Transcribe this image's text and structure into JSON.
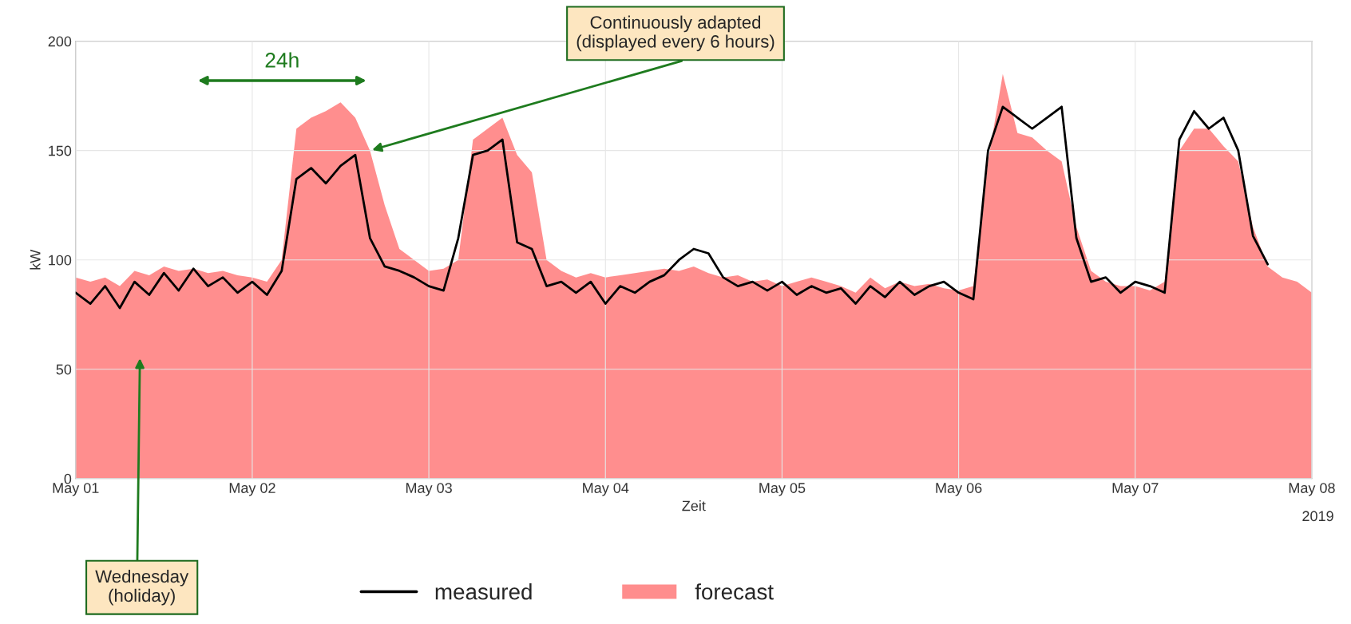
{
  "chart_data": {
    "type": "line",
    "xlabel": "Zeit",
    "ylabel": "kW",
    "x": [
      "2019-05-01T00:00",
      "2019-05-01T02:00",
      "2019-05-01T04:00",
      "2019-05-01T06:00",
      "2019-05-01T08:00",
      "2019-05-01T10:00",
      "2019-05-01T12:00",
      "2019-05-01T14:00",
      "2019-05-01T16:00",
      "2019-05-01T18:00",
      "2019-05-01T20:00",
      "2019-05-01T22:00",
      "2019-05-02T00:00",
      "2019-05-02T02:00",
      "2019-05-02T04:00",
      "2019-05-02T06:00",
      "2019-05-02T08:00",
      "2019-05-02T10:00",
      "2019-05-02T12:00",
      "2019-05-02T14:00",
      "2019-05-02T16:00",
      "2019-05-02T18:00",
      "2019-05-02T20:00",
      "2019-05-02T22:00",
      "2019-05-03T00:00",
      "2019-05-03T02:00",
      "2019-05-03T04:00",
      "2019-05-03T06:00",
      "2019-05-03T08:00",
      "2019-05-03T10:00",
      "2019-05-03T12:00",
      "2019-05-03T14:00",
      "2019-05-03T16:00",
      "2019-05-03T18:00",
      "2019-05-03T20:00",
      "2019-05-03T22:00",
      "2019-05-04T00:00",
      "2019-05-04T02:00",
      "2019-05-04T04:00",
      "2019-05-04T06:00",
      "2019-05-04T08:00",
      "2019-05-04T10:00",
      "2019-05-04T12:00",
      "2019-05-04T14:00",
      "2019-05-04T16:00",
      "2019-05-04T18:00",
      "2019-05-04T20:00",
      "2019-05-04T22:00",
      "2019-05-05T00:00",
      "2019-05-05T02:00",
      "2019-05-05T04:00",
      "2019-05-05T06:00",
      "2019-05-05T08:00",
      "2019-05-05T10:00",
      "2019-05-05T12:00",
      "2019-05-05T14:00",
      "2019-05-05T16:00",
      "2019-05-05T18:00",
      "2019-05-05T20:00",
      "2019-05-05T22:00",
      "2019-05-06T00:00",
      "2019-05-06T02:00",
      "2019-05-06T04:00",
      "2019-05-06T06:00",
      "2019-05-06T08:00",
      "2019-05-06T10:00",
      "2019-05-06T12:00",
      "2019-05-06T14:00",
      "2019-05-06T16:00",
      "2019-05-06T18:00",
      "2019-05-06T20:00",
      "2019-05-06T22:00",
      "2019-05-07T00:00",
      "2019-05-07T02:00",
      "2019-05-07T04:00",
      "2019-05-07T06:00",
      "2019-05-07T08:00",
      "2019-05-07T10:00",
      "2019-05-07T12:00",
      "2019-05-07T14:00",
      "2019-05-07T16:00",
      "2019-05-07T18:00",
      "2019-05-07T20:00",
      "2019-05-07T22:00",
      "2019-05-08T00:00"
    ],
    "series": [
      {
        "name": "forecast",
        "type": "area",
        "color": "#ff7a7a",
        "values": [
          92,
          90,
          92,
          88,
          95,
          93,
          97,
          95,
          96,
          94,
          95,
          93,
          92,
          90,
          100,
          160,
          165,
          168,
          172,
          165,
          150,
          125,
          105,
          100,
          95,
          96,
          100,
          155,
          160,
          165,
          148,
          140,
          100,
          95,
          92,
          94,
          92,
          93,
          94,
          95,
          96,
          95,
          97,
          94,
          92,
          93,
          90,
          91,
          88,
          90,
          92,
          90,
          88,
          85,
          92,
          87,
          90,
          88,
          89,
          87,
          86,
          88,
          145,
          185,
          158,
          156,
          150,
          145,
          115,
          95,
          90,
          88,
          88,
          86,
          90,
          150,
          160,
          160,
          152,
          145,
          115,
          97,
          92,
          90,
          85
        ]
      },
      {
        "name": "measured",
        "color": "#000000",
        "values": [
          85,
          80,
          88,
          78,
          90,
          84,
          94,
          86,
          96,
          88,
          92,
          85,
          90,
          84,
          95,
          137,
          142,
          135,
          143,
          148,
          110,
          97,
          95,
          92,
          88,
          86,
          110,
          148,
          150,
          155,
          108,
          105,
          88,
          90,
          85,
          90,
          80,
          88,
          85,
          90,
          93,
          100,
          105,
          103,
          92,
          88,
          90,
          86,
          90,
          84,
          88,
          85,
          87,
          80,
          88,
          83,
          90,
          84,
          88,
          90,
          85,
          82,
          150,
          170,
          165,
          160,
          165,
          170,
          110,
          90,
          92,
          85,
          90,
          88,
          85,
          155,
          168,
          160,
          165,
          150,
          111,
          98,
          null,
          null,
          null
        ]
      }
    ],
    "xlim": [
      "2019-05-01",
      "2019-05-08"
    ],
    "xticks": [
      {
        "value": "2019-05-01",
        "label": "May 01"
      },
      {
        "value": "2019-05-02",
        "label": "May 02"
      },
      {
        "value": "2019-05-03",
        "label": "May 03"
      },
      {
        "value": "2019-05-04",
        "label": "May 04"
      },
      {
        "value": "2019-05-05",
        "label": "May 05"
      },
      {
        "value": "2019-05-06",
        "label": "May 06"
      },
      {
        "value": "2019-05-07",
        "label": "May 07"
      },
      {
        "value": "2019-05-08",
        "label": "May 08"
      }
    ],
    "ylim": [
      0,
      200
    ],
    "yticks": [
      0,
      50,
      100,
      150,
      200
    ],
    "grid": true,
    "legend": "bottom",
    "annotations": [
      "24h",
      {
        "text": "Continuously adapted\n(displayed every 6 hours)",
        "x": "2019-05-02T16:00",
        "y": 150
      },
      "Wednesday\n(holiday)",
      "2019"
    ]
  }
}
